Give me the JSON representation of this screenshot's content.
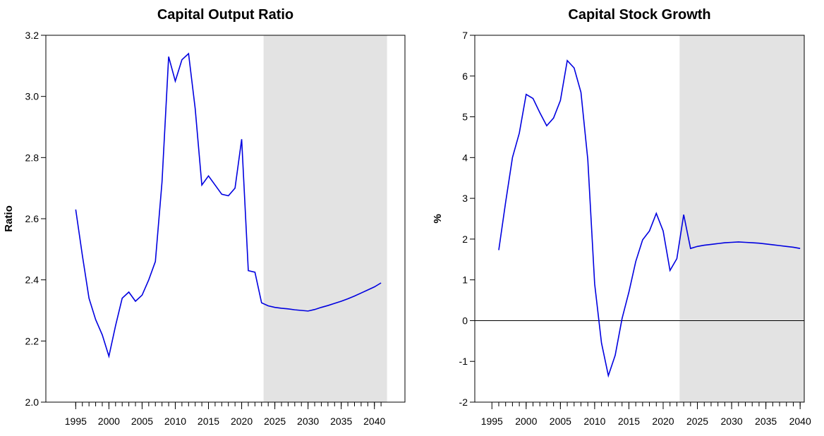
{
  "chart_data": [
    {
      "type": "line",
      "title": "Capital Output Ratio",
      "ylabel": "Ratio",
      "color": "#0000e0",
      "x": [
        1995,
        1996,
        1997,
        1998,
        1999,
        2000,
        2001,
        2002,
        2003,
        2004,
        2005,
        2006,
        2007,
        2008,
        2009,
        2010,
        2011,
        2012,
        2013,
        2014,
        2015,
        2016,
        2017,
        2018,
        2019,
        2020,
        2021,
        2022,
        2023,
        2024,
        2025,
        2026,
        2027,
        2028,
        2029,
        2030,
        2031,
        2032,
        2033,
        2034,
        2035,
        2036,
        2037,
        2038,
        2039,
        2040,
        2041
      ],
      "values": [
        2.63,
        2.48,
        2.34,
        2.27,
        2.22,
        2.15,
        2.25,
        2.34,
        2.36,
        2.33,
        2.35,
        2.4,
        2.46,
        2.72,
        3.13,
        3.05,
        3.12,
        3.14,
        2.96,
        2.71,
        2.74,
        2.71,
        2.68,
        2.675,
        2.7,
        2.86,
        2.43,
        2.425,
        2.325,
        2.315,
        2.31,
        2.307,
        2.305,
        2.302,
        2.3,
        2.298,
        2.303,
        2.31,
        2.316,
        2.323,
        2.33,
        2.338,
        2.347,
        2.357,
        2.367,
        2.377,
        2.39
      ],
      "xlim": [
        1990.5,
        2044.6
      ],
      "xticks": [
        1995,
        2000,
        2005,
        2010,
        2015,
        2020,
        2025,
        2030,
        2035,
        2040
      ],
      "ylim": [
        2.0,
        3.2
      ],
      "yticks": [
        {
          "value": 2.0,
          "label": "2.0"
        },
        2.2,
        2.4,
        2.6,
        2.8,
        {
          "value": 3.0,
          "label": "3.0"
        },
        3.2
      ],
      "shaded_range": [
        2023.3,
        2041.9
      ],
      "shade_color": "#e3e3e3"
    },
    {
      "type": "line",
      "title": "Capital Stock Growth",
      "ylabel": "%",
      "color": "#0000e0",
      "x": [
        1996,
        1997,
        1998,
        1999,
        2000,
        2001,
        2002,
        2003,
        2004,
        2005,
        2006,
        2007,
        2008,
        2009,
        2010,
        2011,
        2012,
        2013,
        2014,
        2015,
        2016,
        2017,
        2018,
        2019,
        2020,
        2021,
        2022,
        2023,
        2024,
        2025,
        2026,
        2027,
        2028,
        2029,
        2030,
        2031,
        2032,
        2033,
        2034,
        2035,
        2036,
        2037,
        2038,
        2039,
        2040
      ],
      "values": [
        1.73,
        2.9,
        4.0,
        4.6,
        5.55,
        5.45,
        5.1,
        4.78,
        4.97,
        5.4,
        6.38,
        6.2,
        5.6,
        3.95,
        0.9,
        -0.55,
        -1.35,
        -0.85,
        0.05,
        0.7,
        1.45,
        1.98,
        2.2,
        2.63,
        2.2,
        1.23,
        1.52,
        2.6,
        1.77,
        1.82,
        1.85,
        1.87,
        1.89,
        1.91,
        1.92,
        1.93,
        1.92,
        1.91,
        1.9,
        1.88,
        1.86,
        1.84,
        1.82,
        1.8,
        1.77
      ],
      "xlim": [
        1992.5,
        2040.6
      ],
      "xticks": [
        1995,
        2000,
        2005,
        2010,
        2015,
        2020,
        2025,
        2030,
        2035,
        2040
      ],
      "ylim": [
        -2,
        7
      ],
      "yticks": [
        -2,
        -1,
        0,
        1,
        2,
        3,
        4,
        5,
        6,
        7
      ],
      "hline": 0,
      "shaded_range": [
        2022.4,
        2040.6
      ],
      "shade_color": "#e3e3e3"
    }
  ]
}
